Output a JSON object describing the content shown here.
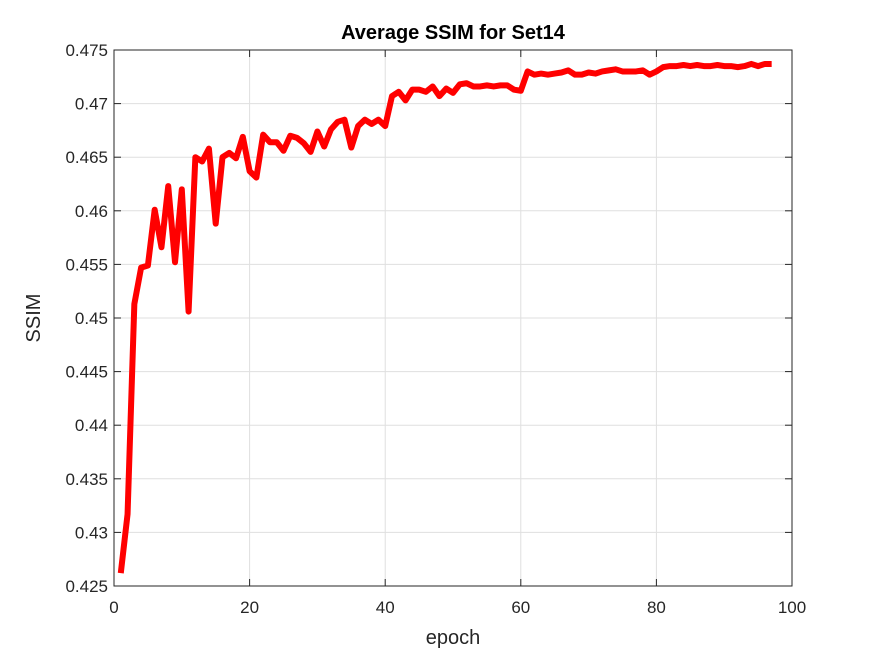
{
  "chart_data": {
    "type": "line",
    "title": "Average SSIM for Set14",
    "xlabel": "epoch",
    "ylabel": "SSIM",
    "xlim": [
      0,
      100
    ],
    "ylim": [
      0.425,
      0.475
    ],
    "xticks": [
      0,
      20,
      40,
      60,
      80,
      100
    ],
    "xtick_labels": [
      "0",
      "20",
      "40",
      "60",
      "80",
      "100"
    ],
    "yticks": [
      0.425,
      0.43,
      0.435,
      0.44,
      0.445,
      0.45,
      0.455,
      0.46,
      0.465,
      0.47,
      0.475
    ],
    "ytick_labels": [
      "0.425",
      "0.43",
      "0.435",
      "0.44",
      "0.445",
      "0.45",
      "0.455",
      "0.46",
      "0.465",
      "0.47",
      "0.475"
    ],
    "grid": true,
    "line_color": "#ff0000",
    "series": [
      {
        "x": [
          1,
          2,
          3,
          4,
          5,
          6,
          7,
          8,
          9,
          10,
          11,
          12,
          13,
          14,
          15,
          16,
          17,
          18,
          19,
          20,
          21,
          22,
          23,
          24,
          25,
          26,
          27,
          28,
          29,
          30,
          31,
          32,
          33,
          34,
          35,
          36,
          37,
          38,
          39,
          40,
          41,
          42,
          43,
          44,
          45,
          46,
          47,
          48,
          49,
          50,
          51,
          52,
          53,
          54,
          55,
          56,
          57,
          58,
          59,
          60,
          61,
          62,
          63,
          64,
          65,
          66,
          67,
          68,
          69,
          70,
          71,
          72,
          73,
          74,
          75,
          76,
          77,
          78,
          79,
          80,
          81,
          82,
          83,
          84,
          85,
          86,
          87,
          88,
          89,
          90,
          91,
          92,
          93,
          94,
          95,
          96,
          97
        ],
        "values": [
          0.4262,
          0.4317,
          0.4513,
          0.4547,
          0.4549,
          0.4601,
          0.4566,
          0.4623,
          0.4552,
          0.462,
          0.4506,
          0.465,
          0.4646,
          0.4658,
          0.4588,
          0.465,
          0.4654,
          0.4649,
          0.4669,
          0.4637,
          0.4631,
          0.4671,
          0.4664,
          0.4664,
          0.4656,
          0.467,
          0.4668,
          0.4663,
          0.4655,
          0.4674,
          0.466,
          0.4676,
          0.4683,
          0.4685,
          0.4659,
          0.4679,
          0.4685,
          0.4681,
          0.4685,
          0.4679,
          0.4707,
          0.4711,
          0.4703,
          0.4713,
          0.4713,
          0.4711,
          0.4716,
          0.4707,
          0.4714,
          0.471,
          0.4718,
          0.4719,
          0.4716,
          0.4716,
          0.4717,
          0.4716,
          0.4717,
          0.4717,
          0.4713,
          0.4712,
          0.473,
          0.4727,
          0.4728,
          0.4727,
          0.4728,
          0.4729,
          0.4731,
          0.4727,
          0.4727,
          0.4729,
          0.4728,
          0.473,
          0.4731,
          0.4732,
          0.473,
          0.473,
          0.473,
          0.4731,
          0.4727,
          0.473,
          0.4734,
          0.4735,
          0.4735,
          0.4736,
          0.4735,
          0.4736,
          0.4735,
          0.4735,
          0.4736,
          0.4735,
          0.4735,
          0.4734,
          0.4735,
          0.4737,
          0.4735,
          0.4737,
          0.4737
        ]
      }
    ]
  }
}
